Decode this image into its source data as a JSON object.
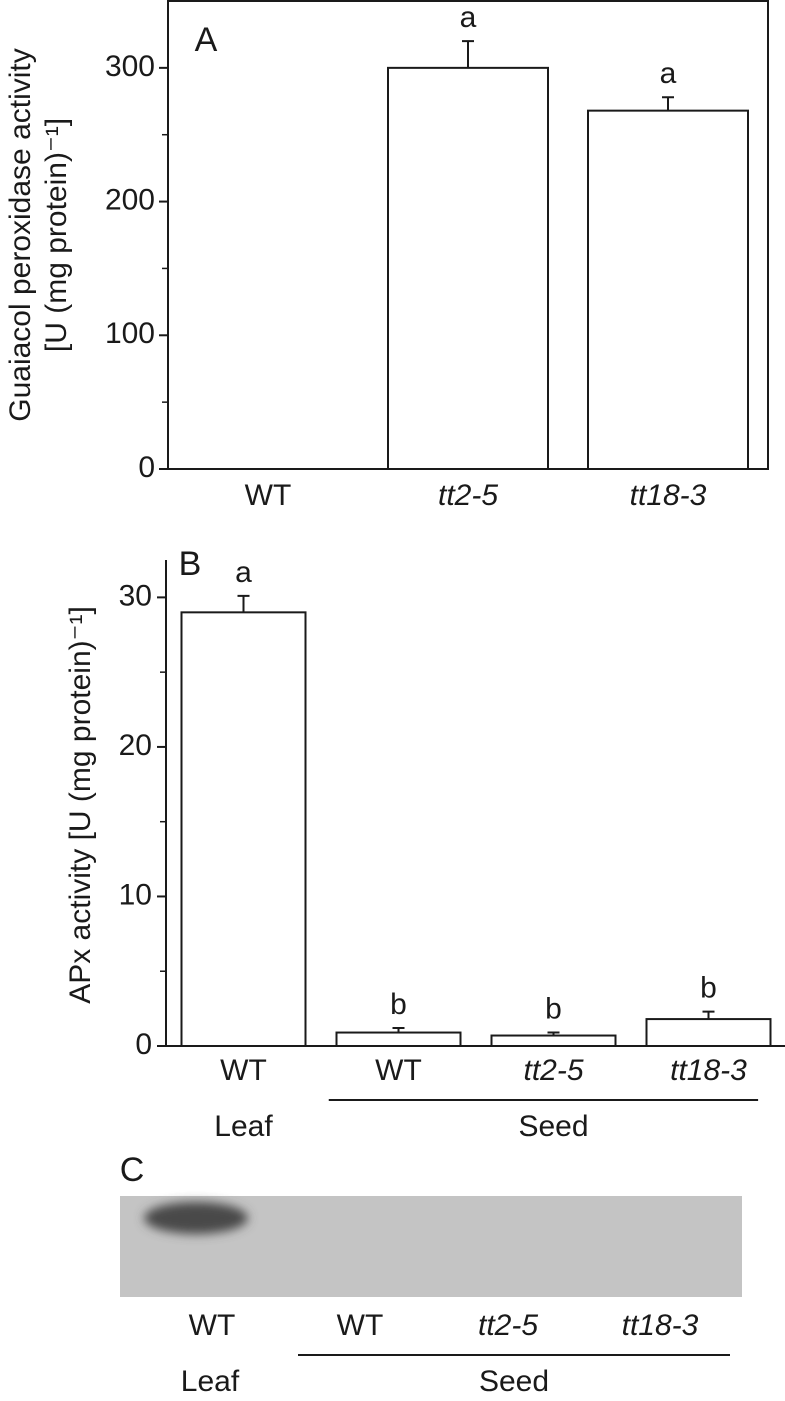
{
  "chart_data": [
    {
      "type": "bar",
      "panel": "A",
      "ylabel": [
        "Guaiacol peroxidase activity",
        "[U (mg protein)⁻¹]"
      ],
      "categories": [
        "WT",
        "tt2-5",
        "tt18-3"
      ],
      "values": [
        0,
        300,
        268
      ],
      "errors": [
        null,
        20,
        10
      ],
      "letters": [
        null,
        "a",
        "a"
      ],
      "ylim": [
        0,
        350
      ],
      "yticks": [
        0,
        100,
        200,
        300
      ],
      "minor_yticks": [
        50,
        150,
        250
      ],
      "color": "#ffffff",
      "frame": true
    },
    {
      "type": "bar",
      "panel": "B",
      "ylabel": [
        "APx activity [U (mg protein)⁻¹]"
      ],
      "categories": [
        "WT",
        "WT",
        "tt2-5",
        "tt18-3"
      ],
      "groups": [
        "Leaf",
        "Seed"
      ],
      "values": [
        29,
        0.9,
        0.7,
        1.8
      ],
      "errors": [
        1.1,
        0.3,
        0.2,
        0.5
      ],
      "letters": [
        "a",
        "b",
        "b",
        "b"
      ],
      "ylim": [
        0,
        32.5
      ],
      "yticks": [
        0,
        10,
        20,
        30
      ],
      "minor_yticks": [
        5,
        15,
        25
      ],
      "color": "#ffffff",
      "frame": false
    }
  ],
  "gel": {
    "panel": "C",
    "lanes": [
      "WT",
      "WT",
      "tt2-5",
      "tt18-3"
    ],
    "groups": [
      "Leaf",
      "Seed"
    ]
  }
}
